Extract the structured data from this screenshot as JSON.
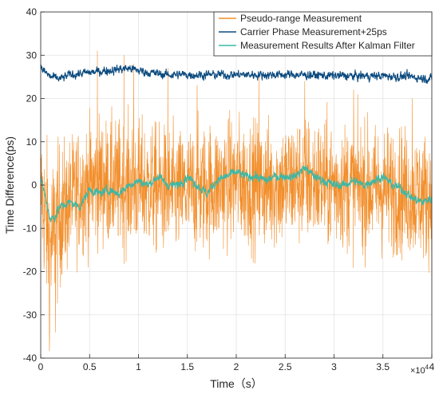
{
  "chart_data": {
    "type": "line",
    "title": "",
    "xlabel": "Time（s）",
    "ylabel": "Time Difference(ps)",
    "x_multiplier_label": "×10",
    "x_multiplier_exponent": "4",
    "xlim": [
      0,
      40000
    ],
    "ylim": [
      -40,
      40
    ],
    "xticks": [
      0,
      5000,
      10000,
      15000,
      20000,
      25000,
      30000,
      35000,
      40000
    ],
    "xtick_labels": [
      "0",
      "0.5",
      "1",
      "1.5",
      "2",
      "2.5",
      "3",
      "3.5",
      "4"
    ],
    "yticks": [
      -40,
      -30,
      -20,
      -10,
      0,
      10,
      20,
      30,
      40
    ],
    "ytick_labels": [
      "-40",
      "-30",
      "-20",
      "-10",
      "0",
      "10",
      "20",
      "30",
      "40"
    ],
    "grid": true,
    "legend_position": "top-right",
    "series": [
      {
        "name": "Pseudo-range Measurement",
        "color": "#f28e2b",
        "description_points": {
          "x": [
            0,
            500,
            1000,
            1500,
            2000,
            3000,
            4000,
            5000,
            6000,
            8000,
            10000,
            12000,
            14000,
            16000,
            18000,
            20000,
            22000,
            24000,
            26000,
            28000,
            30000,
            32000,
            34000,
            36000,
            38000,
            40000
          ],
          "mean": [
            -1,
            -8,
            -14,
            -10,
            -7,
            -4,
            -1,
            0,
            1,
            0,
            0,
            -1,
            -2,
            -1,
            0,
            1,
            0,
            0,
            1,
            1,
            0,
            0,
            -1,
            -1,
            -2,
            -3
          ],
          "spread": [
            8,
            10,
            11,
            10,
            9,
            8,
            8,
            8,
            8,
            8,
            8,
            8,
            8,
            8,
            8,
            8,
            8,
            8,
            8,
            8,
            8,
            8,
            8,
            8,
            8,
            8
          ]
        },
        "peaks": {
          "x": [
            900,
            1500,
            5800,
            8500,
            9500,
            13000,
            16000,
            22300,
            27000,
            32000,
            38000
          ],
          "y": [
            -34,
            -34,
            31,
            30,
            28,
            27,
            23,
            25,
            24,
            22,
            20
          ]
        }
      },
      {
        "name": "Carrier Phase Measurement+25ps",
        "color": "#0b4a7e",
        "description_points": {
          "x": [
            0,
            500,
            1000,
            2000,
            3000,
            5000,
            7000,
            9000,
            11000,
            13000,
            15000,
            17000,
            20000,
            23000,
            26000,
            29000,
            32000,
            35000,
            38000,
            40000
          ],
          "mean": [
            27,
            26,
            25,
            24.5,
            25.5,
            26,
            26.5,
            27,
            26,
            25.5,
            25.5,
            25.5,
            25.5,
            25.5,
            25.5,
            25.3,
            25.2,
            25.2,
            25.0,
            24.5
          ],
          "spread": [
            1.2,
            1.2,
            1.2,
            1.2,
            1.2,
            1.2,
            1.2,
            1.2,
            1.2,
            1.2,
            1.2,
            1.2,
            1.2,
            1.2,
            1.2,
            1.2,
            1.2,
            1.2,
            1.2,
            1.2
          ]
        }
      },
      {
        "name": "Measurement Results After Kalman Filter",
        "color": "#3cb8a6",
        "description_points": {
          "x": [
            0,
            500,
            1000,
            1500,
            2000,
            3000,
            4000,
            5000,
            6000,
            7000,
            8000,
            9000,
            10000,
            11000,
            12000,
            13000,
            14000,
            15000,
            16000,
            17000,
            18000,
            19000,
            20000,
            21000,
            22000,
            23000,
            24000,
            25000,
            26000,
            27000,
            28000,
            29000,
            30000,
            31000,
            32000,
            33000,
            34000,
            35000,
            36000,
            37000,
            38000,
            39000,
            40000
          ],
          "mean": [
            2,
            -3,
            -8,
            -7,
            -5,
            -4,
            -5,
            -1,
            -2,
            -1,
            -2,
            0,
            1,
            0,
            2,
            0,
            0,
            2,
            0,
            -2,
            1,
            2,
            3,
            2,
            2,
            1,
            2,
            2,
            2,
            4,
            2,
            1,
            0,
            0,
            1,
            0,
            1,
            2,
            0,
            -1,
            -3,
            -4,
            -3
          ],
          "spread": [
            1.2,
            1.5,
            1.5,
            1.5,
            1.2,
            1.2,
            1.2,
            1.2,
            1.2,
            1.2,
            1.2,
            1.2,
            1.2,
            1.2,
            1.2,
            1.2,
            1.2,
            1.2,
            1.2,
            1.2,
            1.2,
            1.2,
            1.2,
            1.2,
            1.2,
            1.2,
            1.2,
            1.2,
            1.2,
            1.2,
            1.2,
            1.2,
            1.2,
            1.2,
            1.2,
            1.2,
            1.2,
            1.2,
            1.2,
            1.2,
            1.2,
            1.2,
            1.2
          ]
        }
      }
    ]
  }
}
